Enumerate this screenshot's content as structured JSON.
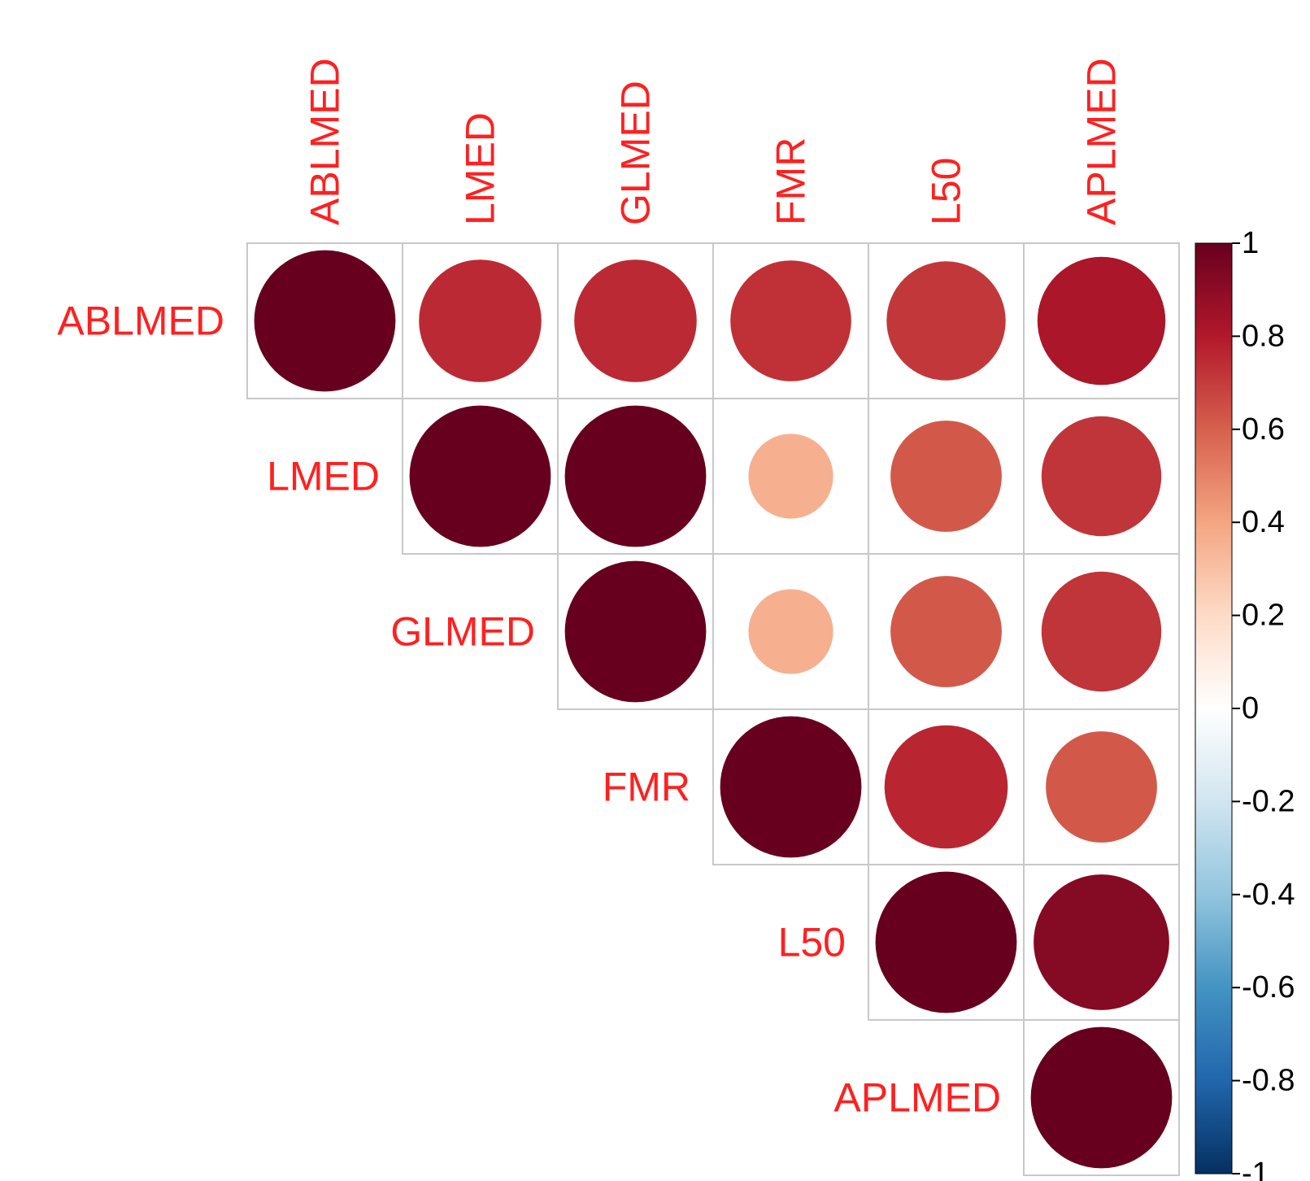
{
  "chart_data": {
    "type": "heatmap",
    "style": "corrplot-upper-circles",
    "variables": [
      "ABLMED",
      "LMED",
      "GLMED",
      "FMR",
      "L50",
      "APLMED"
    ],
    "matrix": [
      [
        1.0,
        0.75,
        0.75,
        0.73,
        0.71,
        0.82
      ],
      [
        0.75,
        1.0,
        1.0,
        0.36,
        0.62,
        0.72
      ],
      [
        0.75,
        1.0,
        1.0,
        0.36,
        0.62,
        0.72
      ],
      [
        0.73,
        0.36,
        0.36,
        1.0,
        0.76,
        0.62
      ],
      [
        0.71,
        0.62,
        0.62,
        0.76,
        1.0,
        0.92
      ],
      [
        0.82,
        0.72,
        0.72,
        0.62,
        0.92,
        1.0
      ]
    ],
    "triangle": "upper",
    "label_color": "#ff2020",
    "colorbar": {
      "ticks": [
        "1",
        "0.8",
        "0.6",
        "0.4",
        "0.2",
        "0",
        "-0.2",
        "-0.4",
        "-0.6",
        "-0.8",
        "-1"
      ],
      "range": [
        -1,
        1
      ],
      "colors": [
        "#67001f",
        "#b2182b",
        "#d6604d",
        "#f4a582",
        "#fddbc7",
        "#ffffff",
        "#d1e5f0",
        "#92c5de",
        "#4393c3",
        "#2166ac",
        "#053061"
      ]
    }
  }
}
